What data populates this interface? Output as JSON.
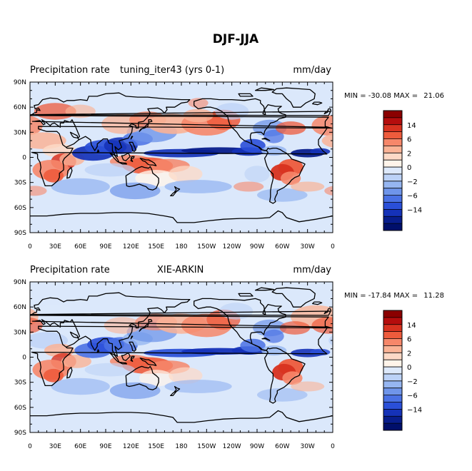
{
  "figure_title": "DJF-JJA",
  "chart_data": [
    {
      "type": "heatmap",
      "title_left": "Precipitation rate",
      "title_center": "tuning_iter43 (yrs 0-1)",
      "units": "mm/day",
      "min_label": "MIN = ",
      "min_value": "-30.08",
      "max_label": "MAX = ",
      "max_value": "21.06",
      "x_range": [
        0,
        360
      ],
      "y_range": [
        -90,
        90
      ],
      "x_ticks": [
        "0",
        "30E",
        "60E",
        "90E",
        "120E",
        "150E",
        "180",
        "150W",
        "120W",
        "90W",
        "60W",
        "30W",
        "0"
      ],
      "y_ticks": [
        "90N",
        "60N",
        "30N",
        "0",
        "30S",
        "60S",
        "90S"
      ],
      "colorbar_labels": [
        "14",
        "6",
        "2",
        "0",
        "−2",
        "−6",
        "−14"
      ]
    },
    {
      "type": "heatmap",
      "title_left": "Precipitation rate",
      "title_center": "XIE-ARKIN",
      "units": "mm/day",
      "min_label": "MIN = ",
      "min_value": "-17.84",
      "max_label": "MAX = ",
      "max_value": "11.28",
      "x_range": [
        0,
        360
      ],
      "y_range": [
        -90,
        90
      ],
      "x_ticks": [
        "0",
        "30E",
        "60E",
        "90E",
        "120E",
        "150E",
        "180",
        "150W",
        "120W",
        "90W",
        "60W",
        "30W",
        "0"
      ],
      "y_ticks": [
        "90N",
        "60N",
        "30N",
        "0",
        "30S",
        "60S",
        "90S"
      ],
      "colorbar_labels": [
        "14",
        "6",
        "2",
        "0",
        "−2",
        "−6",
        "−14"
      ]
    }
  ],
  "colorbar_colors": [
    "#8b0000",
    "#b50d0d",
    "#d83220",
    "#ee5b3c",
    "#f6876a",
    "#fab396",
    "#fdd9c6",
    "#fff4ea",
    "#dde9fb",
    "#bcd2f7",
    "#96b6f1",
    "#6f95ea",
    "#4a71e4",
    "#2a4fd8",
    "#1532b8",
    "#081d8c",
    "#000f6b"
  ],
  "colors": {
    "coast": "#000000",
    "frame": "#000000",
    "base": "#dbe8fb"
  }
}
